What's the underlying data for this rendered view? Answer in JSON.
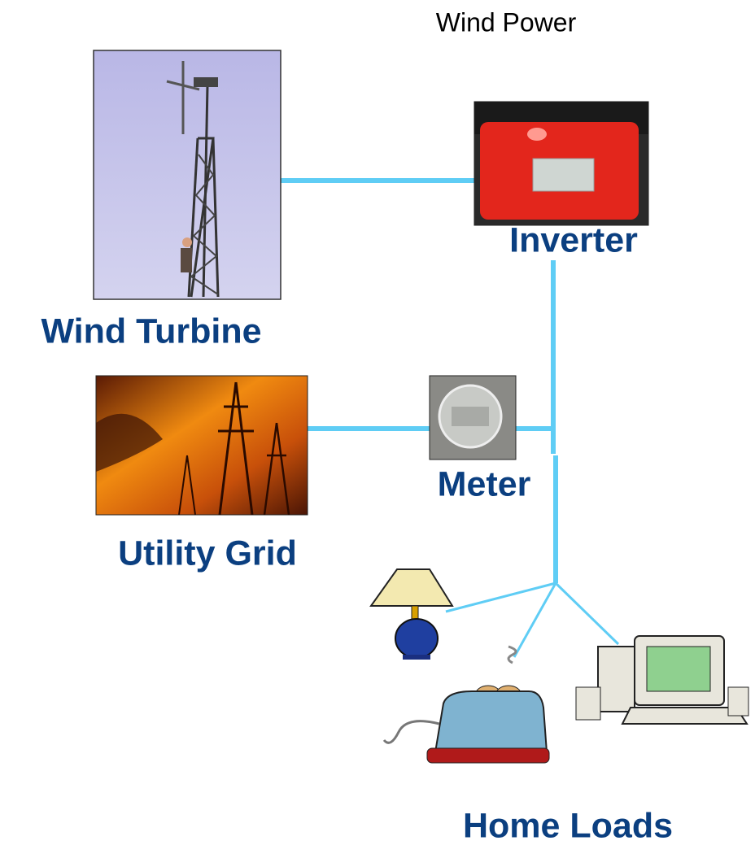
{
  "title": "Wind Power",
  "nodes": [
    {
      "label": "Wind Turbine"
    },
    {
      "label": "Inverter"
    },
    {
      "label": "Utility Grid"
    },
    {
      "label": "Meter"
    },
    {
      "label": "Home Loads"
    }
  ]
}
